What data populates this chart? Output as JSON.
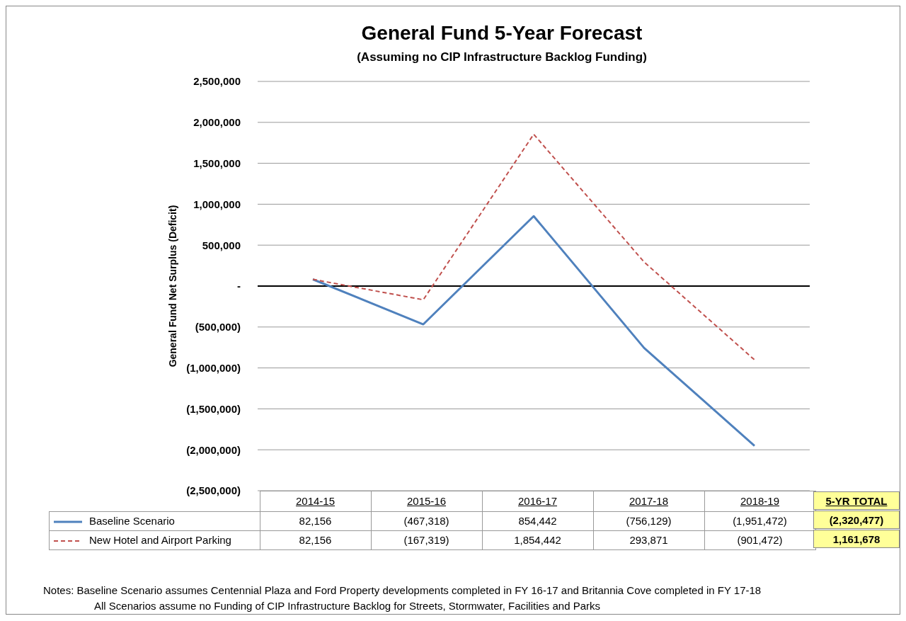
{
  "chart_data": {
    "type": "line",
    "title": "General Fund 5-Year Forecast",
    "subtitle": "(Assuming no CIP Infrastructure Backlog Funding)",
    "ylabel": "General Fund Net Surplus (Deficit)",
    "categories": [
      "2014-15",
      "2015-16",
      "2016-17",
      "2017-18",
      "2018-19"
    ],
    "series": [
      {
        "name": "Baseline Scenario",
        "color": "#4f81bd",
        "line_style": "solid",
        "values": [
          82156,
          -467318,
          854442,
          -756129,
          -1951472
        ],
        "value_labels": [
          "82,156",
          "(467,318)",
          "854,442",
          "(756,129)",
          "(1,951,472)"
        ]
      },
      {
        "name": "New Hotel and Airport Parking",
        "color": "#c0504d",
        "line_style": "dashed",
        "values": [
          82156,
          -167319,
          1854442,
          293871,
          -901472
        ],
        "value_labels": [
          "82,156",
          "(167,319)",
          "1,854,442",
          "293,871",
          "(901,472)"
        ]
      }
    ],
    "ylim": [
      -2500000,
      2500000
    ],
    "yticks": [
      {
        "value": -2500000,
        "label": "(2,500,000)"
      },
      {
        "value": -2000000,
        "label": "(2,000,000)"
      },
      {
        "value": -1500000,
        "label": "(1,500,000)"
      },
      {
        "value": -1000000,
        "label": "(1,000,000)"
      },
      {
        "value": -500000,
        "label": "(500,000)"
      },
      {
        "value": 0,
        "label": "-"
      },
      {
        "value": 500000,
        "label": "500,000"
      },
      {
        "value": 1000000,
        "label": "1,000,000"
      },
      {
        "value": 1500000,
        "label": "1,500,000"
      },
      {
        "value": 2000000,
        "label": "2,000,000"
      },
      {
        "value": 2500000,
        "label": "2,500,000"
      }
    ],
    "ref_lines": [
      {
        "axis": "y",
        "value": 0,
        "color": "#000000"
      }
    ],
    "grid": "y",
    "legend": "bottom",
    "marker": "none",
    "annotations": [
      "5-YR TOTAL",
      "(2,320,477)",
      "1,161,678",
      "Notes:  Baseline Scenario assumes Centennial Plaza and Ford Property developments completed in FY 16-17 and Britannia Cove completed in FY 17-18",
      "All Scenarios assume no Funding of CIP Infrastructure Backlog for Streets, Stormwater, Facilities and Parks"
    ]
  }
}
